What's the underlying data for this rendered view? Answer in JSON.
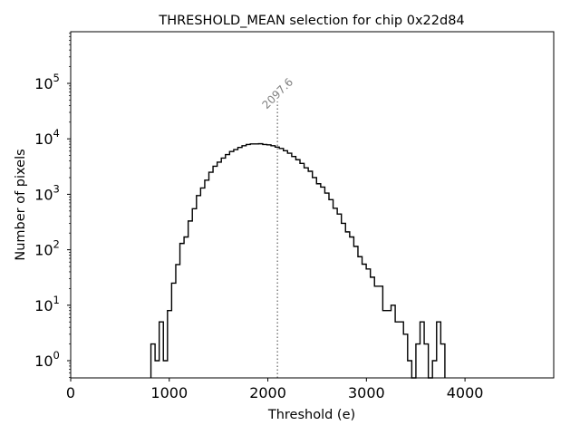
{
  "chart_data": {
    "type": "histogram",
    "title": "THRESHOLD_MEAN selection for chip 0x22d84",
    "xlabel": "Threshold (e)",
    "ylabel": "Number of pixels",
    "xlim": [
      0,
      4900
    ],
    "ylim_log10": [
      -0.3,
      5.9
    ],
    "yscale": "log",
    "x_ticks": [
      {
        "value": 0,
        "label": "0"
      },
      {
        "value": 1000,
        "label": "1000"
      },
      {
        "value": 2000,
        "label": "2000"
      },
      {
        "value": 3000,
        "label": "3000"
      },
      {
        "value": 4000,
        "label": "4000"
      }
    ],
    "y_ticks": [
      {
        "exp": 0,
        "base": "10",
        "sup": "0"
      },
      {
        "exp": 1,
        "base": "10",
        "sup": "1"
      },
      {
        "exp": 2,
        "base": "10",
        "sup": "2"
      },
      {
        "exp": 3,
        "base": "10",
        "sup": "3"
      },
      {
        "exp": 4,
        "base": "10",
        "sup": "4"
      },
      {
        "exp": 5,
        "base": "10",
        "sup": "5"
      }
    ],
    "bin_start": 814,
    "bin_width": 42,
    "counts": [
      2,
      1,
      5,
      1,
      8,
      25,
      54,
      130,
      170,
      330,
      550,
      950,
      1300,
      1800,
      2500,
      3200,
      3800,
      4500,
      5200,
      5900,
      6400,
      7000,
      7500,
      7900,
      8100,
      8100,
      8150,
      7900,
      7800,
      7500,
      7100,
      6700,
      6100,
      5500,
      4800,
      4200,
      3600,
      3000,
      2600,
      2000,
      1550,
      1350,
      1050,
      800,
      560,
      440,
      300,
      210,
      170,
      115,
      75,
      55,
      45,
      32,
      22,
      22,
      8,
      8,
      10,
      5,
      5,
      3,
      1,
      0,
      2,
      5,
      2,
      0,
      1,
      5,
      2
    ],
    "annotation": {
      "value": 2097.6,
      "label": "2097.6",
      "line_style": "dotted",
      "color": "#808080"
    },
    "histtype": "step",
    "line_color": "#000000"
  }
}
